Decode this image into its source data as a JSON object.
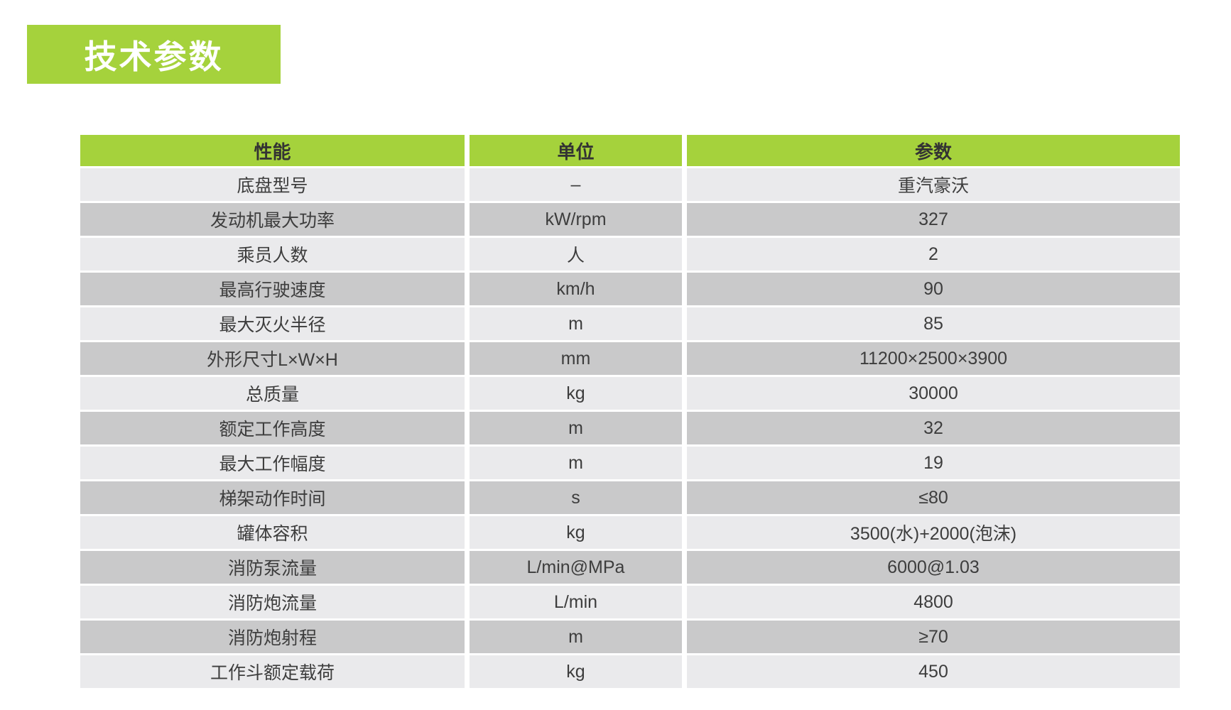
{
  "title_badge": {
    "text": "技术参数",
    "bg_color": "#a5d23c",
    "text_color": "#ffffff"
  },
  "table": {
    "columns": [
      "性能",
      "单位",
      "参数"
    ],
    "colors": {
      "header_bg": "#a5d23c",
      "row_light": "#eaeaec",
      "row_dark": "#c9c9ca",
      "text": "#3d3d3d"
    },
    "rows": [
      {
        "name": "底盘型号",
        "unit": "–",
        "value": "重汽豪沃"
      },
      {
        "name": "发动机最大功率",
        "unit": "kW/rpm",
        "value": "327"
      },
      {
        "name": "乘员人数",
        "unit": "人",
        "value": "2"
      },
      {
        "name": "最高行驶速度",
        "unit": "km/h",
        "value": "90"
      },
      {
        "name": "最大灭火半径",
        "unit": "m",
        "value": "85"
      },
      {
        "name": "外形尺寸L×W×H",
        "unit": "mm",
        "value": "11200×2500×3900"
      },
      {
        "name": "总质量",
        "unit": "kg",
        "value": "30000"
      },
      {
        "name": "额定工作高度",
        "unit": "m",
        "value": "32"
      },
      {
        "name": "最大工作幅度",
        "unit": "m",
        "value": "19"
      },
      {
        "name": "梯架动作时间",
        "unit": "s",
        "value": "≤80"
      },
      {
        "name": "罐体容积",
        "unit": "kg",
        "value": "3500(水)+2000(泡沫)"
      },
      {
        "name": "消防泵流量",
        "unit": "L/min@MPa",
        "value": "6000@1.03"
      },
      {
        "name": "消防炮流量",
        "unit": "L/min",
        "value": "4800"
      },
      {
        "name": "消防炮射程",
        "unit": "m",
        "value": "≥70"
      },
      {
        "name": "工作斗额定载荷",
        "unit": "kg",
        "value": "450"
      }
    ]
  }
}
